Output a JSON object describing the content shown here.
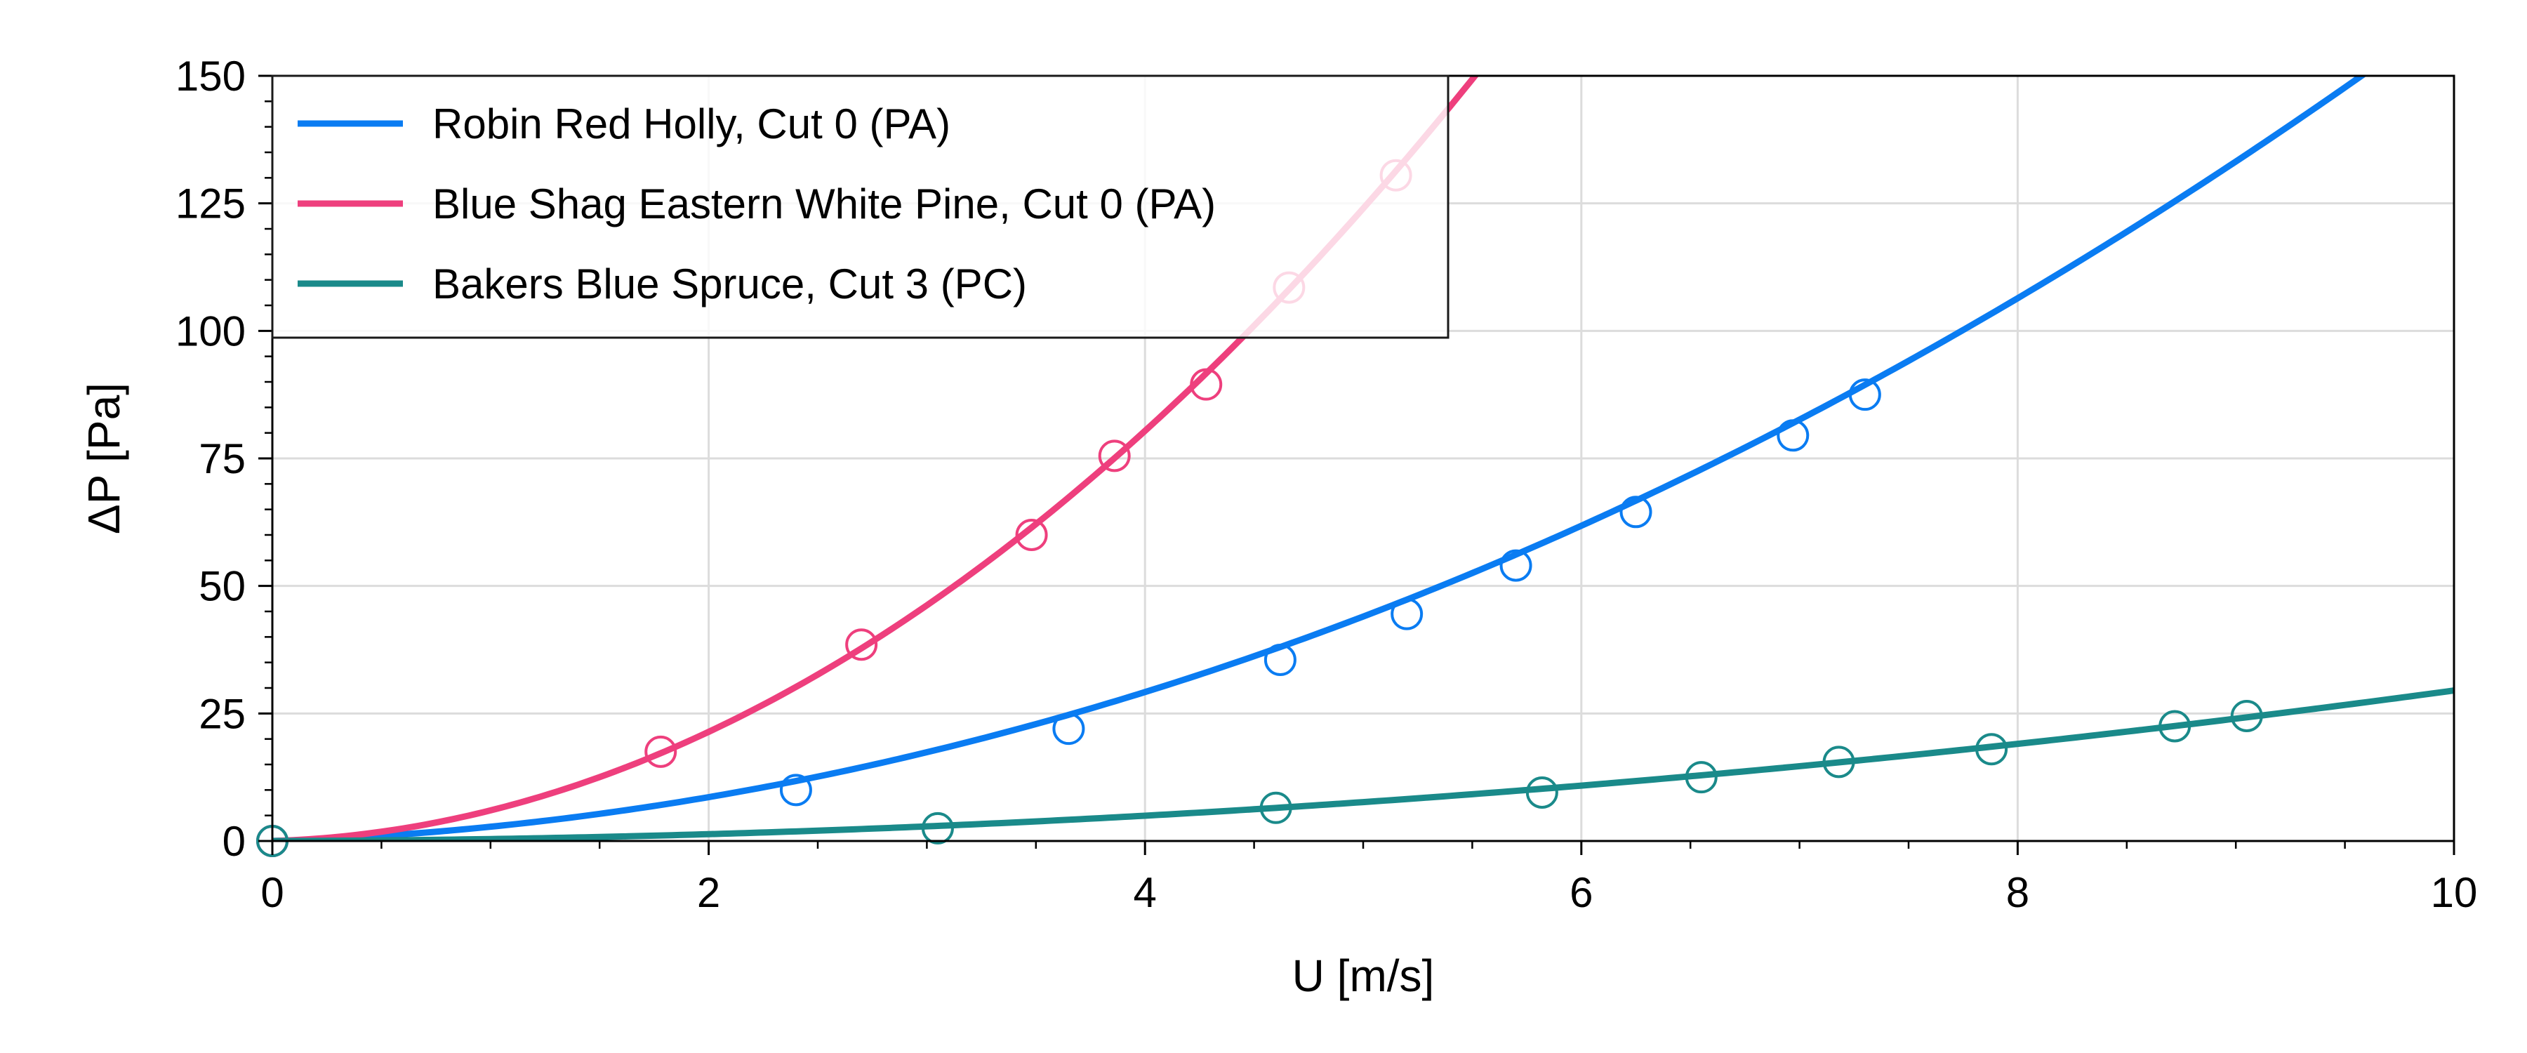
{
  "chart_data": {
    "type": "scatter",
    "xlabel": "U [m/s]",
    "ylabel": "ΔP [Pa]",
    "xlim": [
      0,
      10
    ],
    "ylim": [
      0,
      150
    ],
    "x_ticks": [
      0,
      2,
      4,
      6,
      8,
      10
    ],
    "y_ticks": [
      0,
      25,
      50,
      75,
      100,
      125,
      150
    ],
    "x_tick_labels": [
      "0",
      "2",
      "4",
      "6",
      "8",
      "10"
    ],
    "y_tick_labels": [
      "0",
      "25",
      "50",
      "75",
      "100",
      "125",
      "150"
    ],
    "grid": true,
    "legend_position": "top-left",
    "series": [
      {
        "name": "Robin Red Holly, Cut 0 (PA)",
        "color": "#0a7cf2",
        "fit": {
          "form": "quadratic",
          "a": 1.5,
          "b": 1.3
        },
        "points": [
          {
            "x": 0.0,
            "y": 0.0
          },
          {
            "x": 2.4,
            "y": 10
          },
          {
            "x": 3.65,
            "y": 22
          },
          {
            "x": 4.62,
            "y": 35.5
          },
          {
            "x": 5.2,
            "y": 44.5
          },
          {
            "x": 5.7,
            "y": 54
          },
          {
            "x": 6.25,
            "y": 64.5
          },
          {
            "x": 6.97,
            "y": 79.5
          },
          {
            "x": 7.3,
            "y": 87.5
          }
        ]
      },
      {
        "name": "Blue Shag Eastern White Pine, Cut 0 (PA)",
        "color": "#ee3f7d",
        "fit": {
          "form": "quadratic",
          "a": 4.7,
          "b": 1.3
        },
        "points": [
          {
            "x": 0.0,
            "y": 0.0
          },
          {
            "x": 1.78,
            "y": 17.5
          },
          {
            "x": 2.7,
            "y": 38.5
          },
          {
            "x": 3.48,
            "y": 60
          },
          {
            "x": 3.86,
            "y": 75.5
          },
          {
            "x": 4.28,
            "y": 89.5
          },
          {
            "x": 4.66,
            "y": 108.5
          },
          {
            "x": 5.15,
            "y": 130.5
          }
        ]
      },
      {
        "name": "Bakers Blue Spruce, Cut 3 (PC)",
        "color": "#1a8a8a",
        "fit": {
          "form": "quadratic",
          "a": 0.285,
          "b": 0.1
        },
        "points": [
          {
            "x": 0.0,
            "y": 0.0
          },
          {
            "x": 3.05,
            "y": 2.5
          },
          {
            "x": 4.6,
            "y": 6.5
          },
          {
            "x": 5.82,
            "y": 9.5
          },
          {
            "x": 6.55,
            "y": 12.5
          },
          {
            "x": 7.18,
            "y": 15.5
          },
          {
            "x": 7.88,
            "y": 18
          },
          {
            "x": 8.72,
            "y": 22.5
          },
          {
            "x": 9.05,
            "y": 24.5
          }
        ]
      }
    ]
  }
}
